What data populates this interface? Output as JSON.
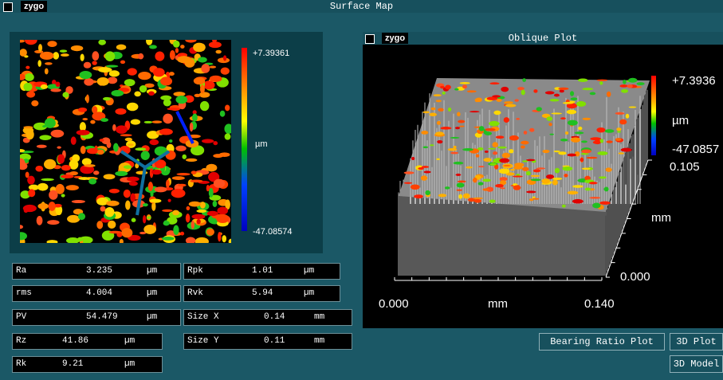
{
  "window": {
    "logo": "zygo",
    "title": "Surface Map"
  },
  "surface_map": {
    "scale_max": "+7.39361",
    "scale_unit": "µm",
    "scale_min": "-47.08574"
  },
  "parameters": [
    {
      "label": "Ra",
      "value": "3.235",
      "unit": "µm"
    },
    {
      "label": "rms",
      "value": "4.004",
      "unit": "µm"
    },
    {
      "label": "PV",
      "value": "54.479",
      "unit": "µm"
    },
    {
      "label": "Rz",
      "value": "41.86",
      "unit": "µm"
    },
    {
      "label": "Rk",
      "value": "9.21",
      "unit": "µm"
    },
    {
      "label": "Rpk",
      "value": "1.01",
      "unit": "µm"
    },
    {
      "label": "Rvk",
      "value": "5.94",
      "unit": "µm"
    },
    {
      "label": "Size X",
      "value": "0.14",
      "unit": "mm"
    },
    {
      "label": "Size Y",
      "value": "0.11",
      "unit": "mm"
    }
  ],
  "oblique_plot": {
    "logo": "zygo",
    "title": "Oblique Plot",
    "scale_max": "+7.3936",
    "scale_unit": "µm",
    "scale_min": "-47.0857",
    "y_max": "0.105",
    "y_unit": "mm",
    "y_min": "0.000",
    "x_min": "0.000",
    "x_unit": "mm",
    "x_max": "0.140"
  },
  "buttons": [
    "Bearing Ratio Plot",
    "3D Plot",
    "3D Model"
  ]
}
